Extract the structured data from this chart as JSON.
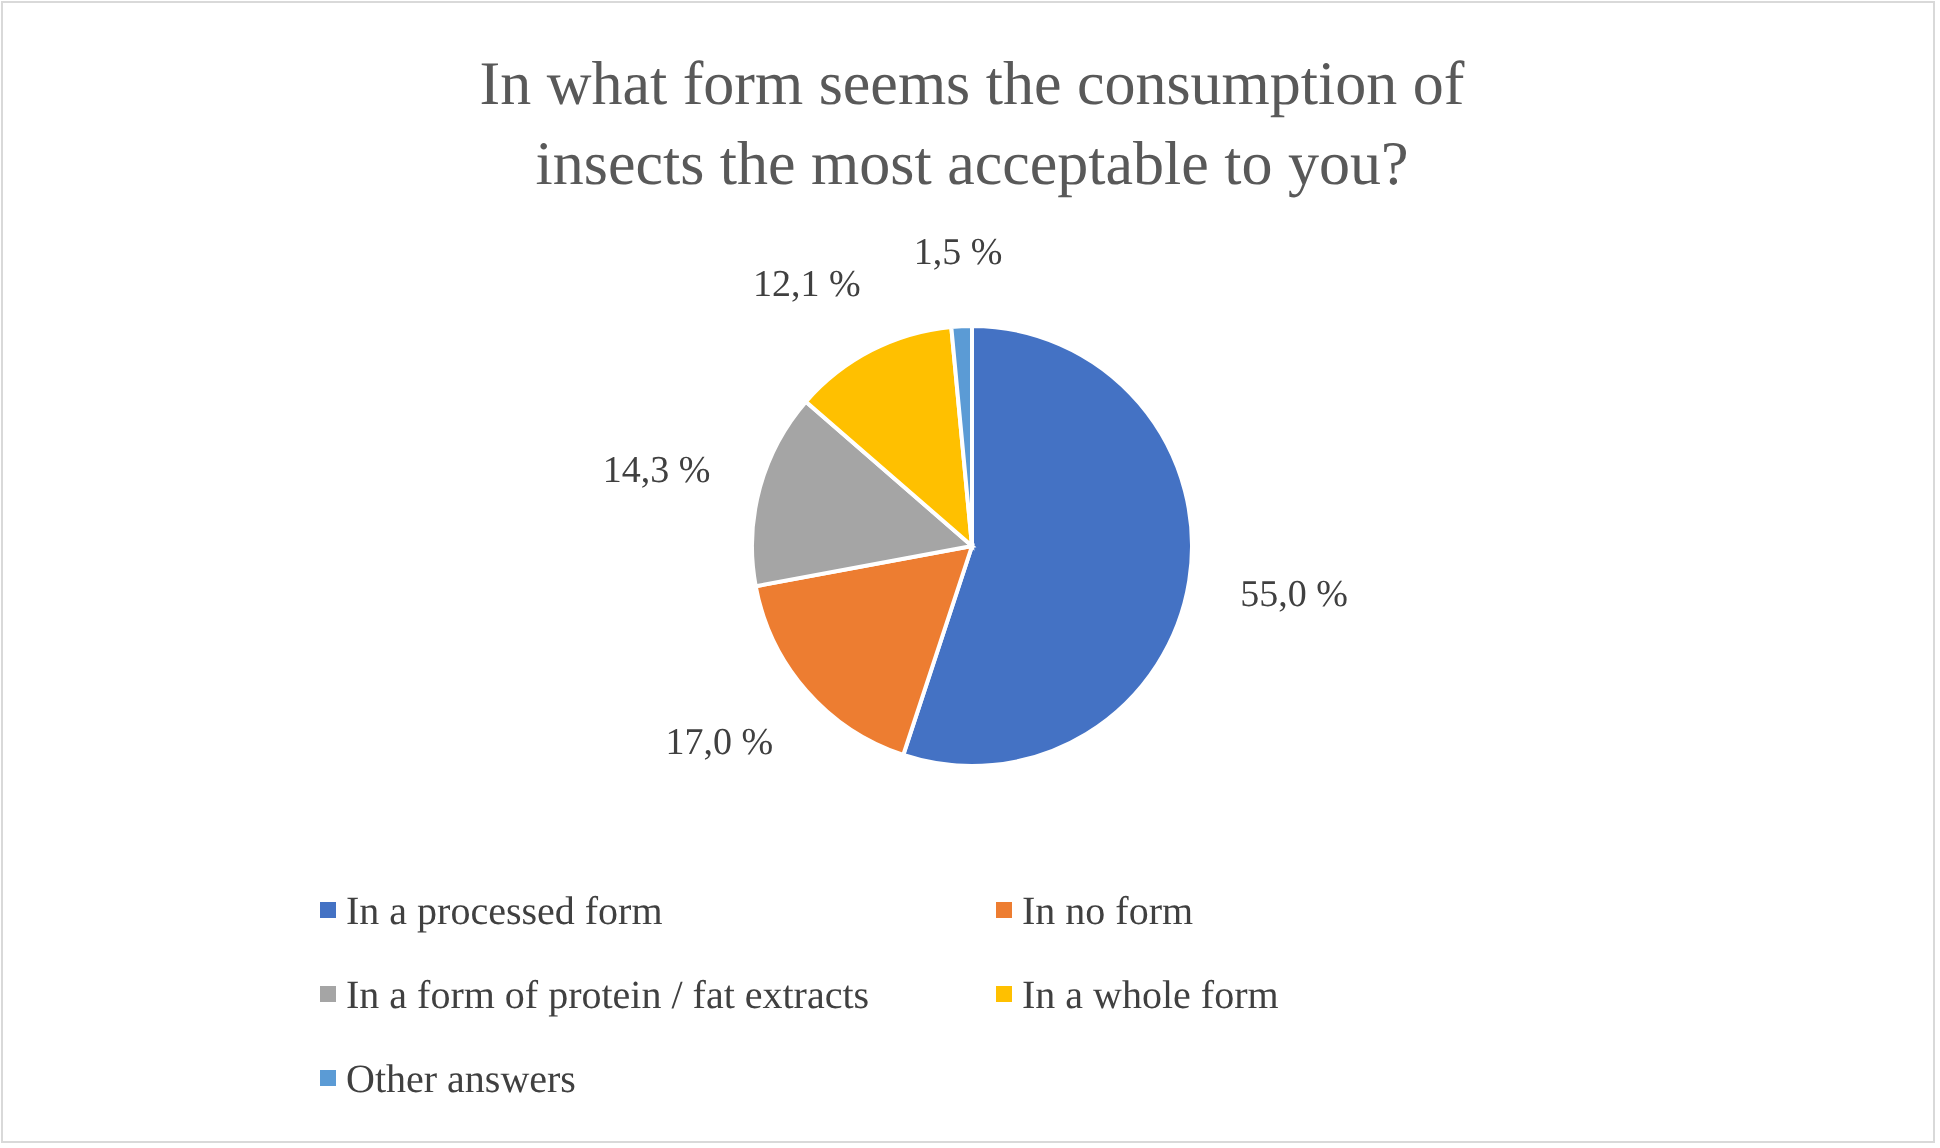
{
  "chart_data": {
    "type": "pie",
    "title": "In what form seems the consumption of insects the most acceptable to you?",
    "categories": [
      "In a processed form",
      "In no form",
      "In a form of protein / fat extracts",
      "In a whole form",
      "Other answers"
    ],
    "values": [
      55.0,
      17.0,
      14.3,
      12.1,
      1.5
    ],
    "value_labels": [
      "55,0 %",
      "17,0 %",
      "14,3 %",
      "12,1 %",
      "1,5 %"
    ],
    "colors": [
      "#4472c4",
      "#ed7d31",
      "#a5a5a5",
      "#ffc000",
      "#5b9bd5"
    ],
    "legend": "bottom"
  }
}
